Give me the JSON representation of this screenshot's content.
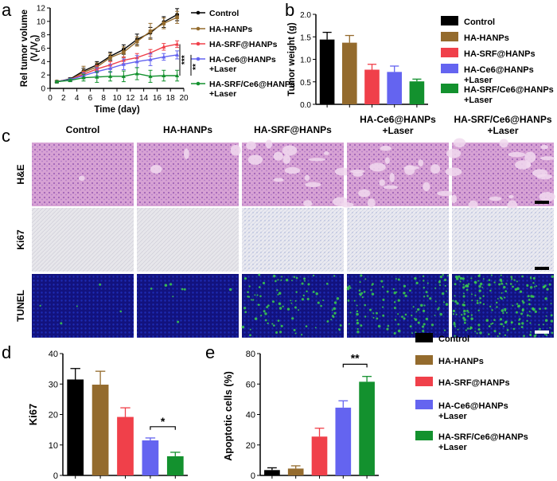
{
  "colors": {
    "control": "#000000",
    "hahanps": "#946B2D",
    "srf": "#F0404A",
    "ce6": "#6464F0",
    "combo": "#13912E",
    "he_bg": "#D9A5D6",
    "he_dense": "#B574C7",
    "ki67_bg": "#E6E5EA",
    "tunel_bg": "#11117A",
    "tunel_green": "#3BD14A"
  },
  "panels": {
    "a": "a",
    "b": "b",
    "c": "c",
    "d": "d",
    "e": "e"
  },
  "histology": {
    "columns": [
      "Control",
      "HA-HANPs",
      "HA-SRF@HANPs",
      "HA-Ce6@HANPs\n+Laser",
      "HA-SRF/Ce6@HANPs\n+Laser"
    ],
    "rows": [
      "H&E",
      "Ki67",
      "TUNEL"
    ],
    "green_density": [
      0.02,
      0.03,
      0.35,
      0.45,
      0.75
    ],
    "he_density": [
      0.95,
      0.9,
      0.45,
      0.4,
      0.35
    ]
  },
  "chart_data": [
    {
      "id": "a",
      "type": "line",
      "title": "",
      "xlabel": "Time (day)",
      "ylabel": "Rel tumor volume (Vt/V0)",
      "ylabel_main": "Rel tumor volume",
      "ylabel_sub": "(V",
      "ylabel_t": "t",
      "ylabel_mid": "/V",
      "ylabel_0": "0",
      "ylabel_end": ")",
      "xlim": [
        0,
        20
      ],
      "ylim": [
        0,
        12
      ],
      "xticks": [
        0,
        2,
        4,
        6,
        8,
        10,
        12,
        14,
        16,
        18,
        20
      ],
      "yticks": [
        0,
        2,
        4,
        6,
        8,
        10,
        12
      ],
      "x": [
        1,
        3,
        5,
        7,
        9,
        11,
        13,
        15,
        17,
        19
      ],
      "series": [
        {
          "name": "Control",
          "values": [
            1.0,
            1.4,
            2.6,
            3.5,
            4.8,
            5.8,
            7.3,
            8.3,
            9.9,
            11.0
          ],
          "err": [
            0.1,
            0.2,
            0.4,
            0.5,
            0.6,
            0.7,
            0.8,
            0.8,
            0.8,
            0.9
          ]
        },
        {
          "name": "HA-HANPs",
          "values": [
            1.0,
            1.3,
            2.4,
            3.2,
            4.6,
            5.4,
            7.0,
            8.5,
            9.7,
            10.6
          ],
          "err": [
            0.1,
            0.2,
            0.9,
            0.6,
            0.6,
            0.8,
            0.7,
            1.2,
            0.8,
            0.9
          ]
        },
        {
          "name": "HA-SRF@HANPs",
          "values": [
            1.0,
            1.3,
            2.1,
            2.9,
            3.5,
            4.2,
            4.6,
            5.3,
            6.2,
            6.6
          ],
          "err": [
            0.1,
            0.2,
            0.4,
            0.5,
            0.5,
            0.5,
            0.6,
            0.5,
            0.5,
            0.5
          ]
        },
        {
          "name": "HA-Ce6@HANPs\n+Laser",
          "values": [
            1.0,
            1.3,
            1.9,
            2.5,
            3.0,
            3.6,
            4.0,
            4.3,
            4.7,
            5.0
          ],
          "err": [
            0.1,
            0.2,
            0.4,
            0.6,
            0.6,
            0.8,
            0.9,
            0.9,
            0.5,
            0.6
          ]
        },
        {
          "name": "HA-SRF/Ce6@HANPs\n+Laser",
          "values": [
            1.0,
            1.2,
            1.6,
            1.7,
            1.8,
            1.8,
            2.2,
            1.8,
            1.9,
            1.9
          ],
          "err": [
            0.1,
            0.2,
            0.5,
            0.8,
            0.7,
            0.8,
            0.9,
            0.9,
            0.8,
            0.8
          ]
        }
      ],
      "significance": [
        "***",
        "**"
      ]
    },
    {
      "id": "b",
      "type": "bar",
      "title": "",
      "xlabel": "",
      "ylabel": "Tumor weight (g)",
      "ylim": [
        0,
        2.0
      ],
      "yticks": [
        0.0,
        0.5,
        1.0,
        1.5,
        2.0
      ],
      "ytick_labels": [
        "0.0",
        "0.5",
        "1.0",
        "1.5",
        "2.0"
      ],
      "categories": [
        "Control",
        "HA-HANPs",
        "HA-SRF@HANPs",
        "HA-Ce6@HANPs\n+Laser",
        "HA-SRF/Ce6@HANPs\n+Laser"
      ],
      "values": [
        1.44,
        1.37,
        0.77,
        0.72,
        0.51
      ],
      "err": [
        0.16,
        0.16,
        0.12,
        0.13,
        0.05
      ]
    },
    {
      "id": "d",
      "type": "bar",
      "title": "",
      "xlabel": "",
      "ylabel": "Ki67",
      "ylim": [
        0,
        40
      ],
      "yticks": [
        0,
        10,
        20,
        30,
        40
      ],
      "ytick_labels": [
        "0",
        "10",
        "20",
        "30",
        "40"
      ],
      "categories": [
        "Control",
        "HA-HANPs",
        "HA-SRF@HANPs",
        "HA-Ce6@HANPs\n+Laser",
        "HA-SRF/Ce6@HANPs\n+Laser"
      ],
      "values": [
        31.5,
        29.8,
        19.2,
        11.5,
        6.3
      ],
      "err": [
        3.6,
        4.4,
        3.0,
        0.8,
        1.3
      ],
      "significance": "*"
    },
    {
      "id": "e",
      "type": "bar",
      "title": "",
      "xlabel": "",
      "ylabel": "Apoptotic cells (%)",
      "ylim": [
        0,
        80
      ],
      "yticks": [
        0,
        20,
        40,
        60,
        80
      ],
      "ytick_labels": [
        "0",
        "20",
        "40",
        "60",
        "80"
      ],
      "categories": [
        "Control",
        "HA-HANPs",
        "HA-SRF@HANPs",
        "HA-Ce6@HANPs\n+Laser",
        "HA-SRF/Ce6@HANPs\n+Laser"
      ],
      "values": [
        3.5,
        4.5,
        25.5,
        44.5,
        61.5
      ],
      "err": [
        1.5,
        1.8,
        5.5,
        4.5,
        3.5
      ],
      "significance": "**"
    }
  ],
  "legends": {
    "b": [
      "Control",
      "HA-HANPs",
      "HA-SRF@HANPs",
      "HA-Ce6@HANPs\n+Laser",
      "HA-SRF/Ce6@HANPs\n+Laser"
    ],
    "e": [
      "Control",
      "HA-HANPs",
      "HA-SRF@HANPs",
      "HA-Ce6@HANPs\n+Laser",
      "HA-SRF/Ce6@HANPs\n+Laser"
    ]
  }
}
